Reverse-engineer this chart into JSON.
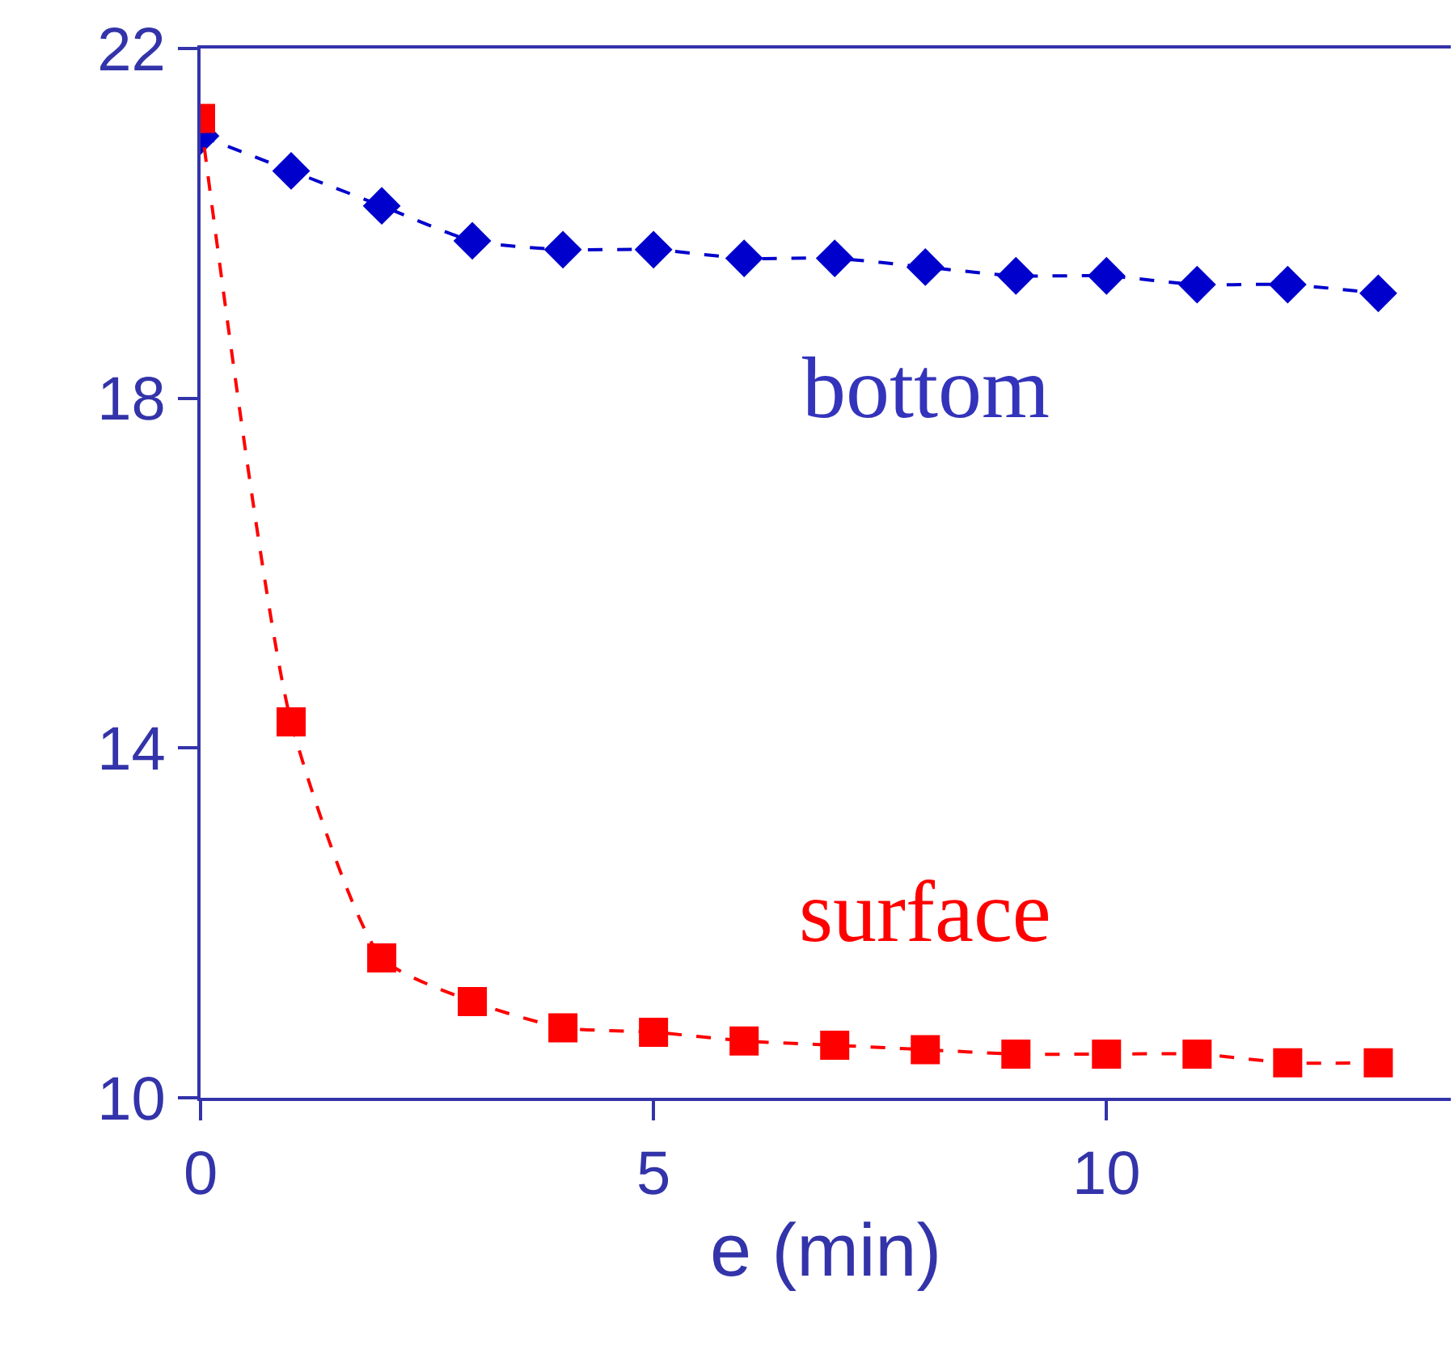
{
  "chart_data": {
    "type": "line",
    "xlabel": "e (min)",
    "x": [
      0,
      1,
      2,
      3,
      4,
      5,
      6,
      7,
      8,
      9,
      10,
      11,
      12,
      13
    ],
    "series": [
      {
        "name": "bottom",
        "color": "#0000cc",
        "marker": "diamond",
        "values": [
          21.0,
          20.6,
          20.2,
          19.8,
          19.7,
          19.7,
          19.6,
          19.6,
          19.5,
          19.4,
          19.4,
          19.3,
          19.3,
          19.2
        ]
      },
      {
        "name": "surface",
        "color": "#ff0000",
        "marker": "square",
        "values": [
          21.2,
          14.3,
          11.6,
          11.1,
          10.8,
          10.75,
          10.65,
          10.6,
          10.55,
          10.5,
          10.5,
          10.5,
          10.4,
          10.4
        ]
      }
    ],
    "xlim": [
      0,
      13.8
    ],
    "xticks": [
      0,
      5,
      10
    ],
    "ylim": [
      10,
      22
    ],
    "yticks": [
      10,
      14,
      18,
      22
    ],
    "line_style": "dashed",
    "legend": false
  }
}
